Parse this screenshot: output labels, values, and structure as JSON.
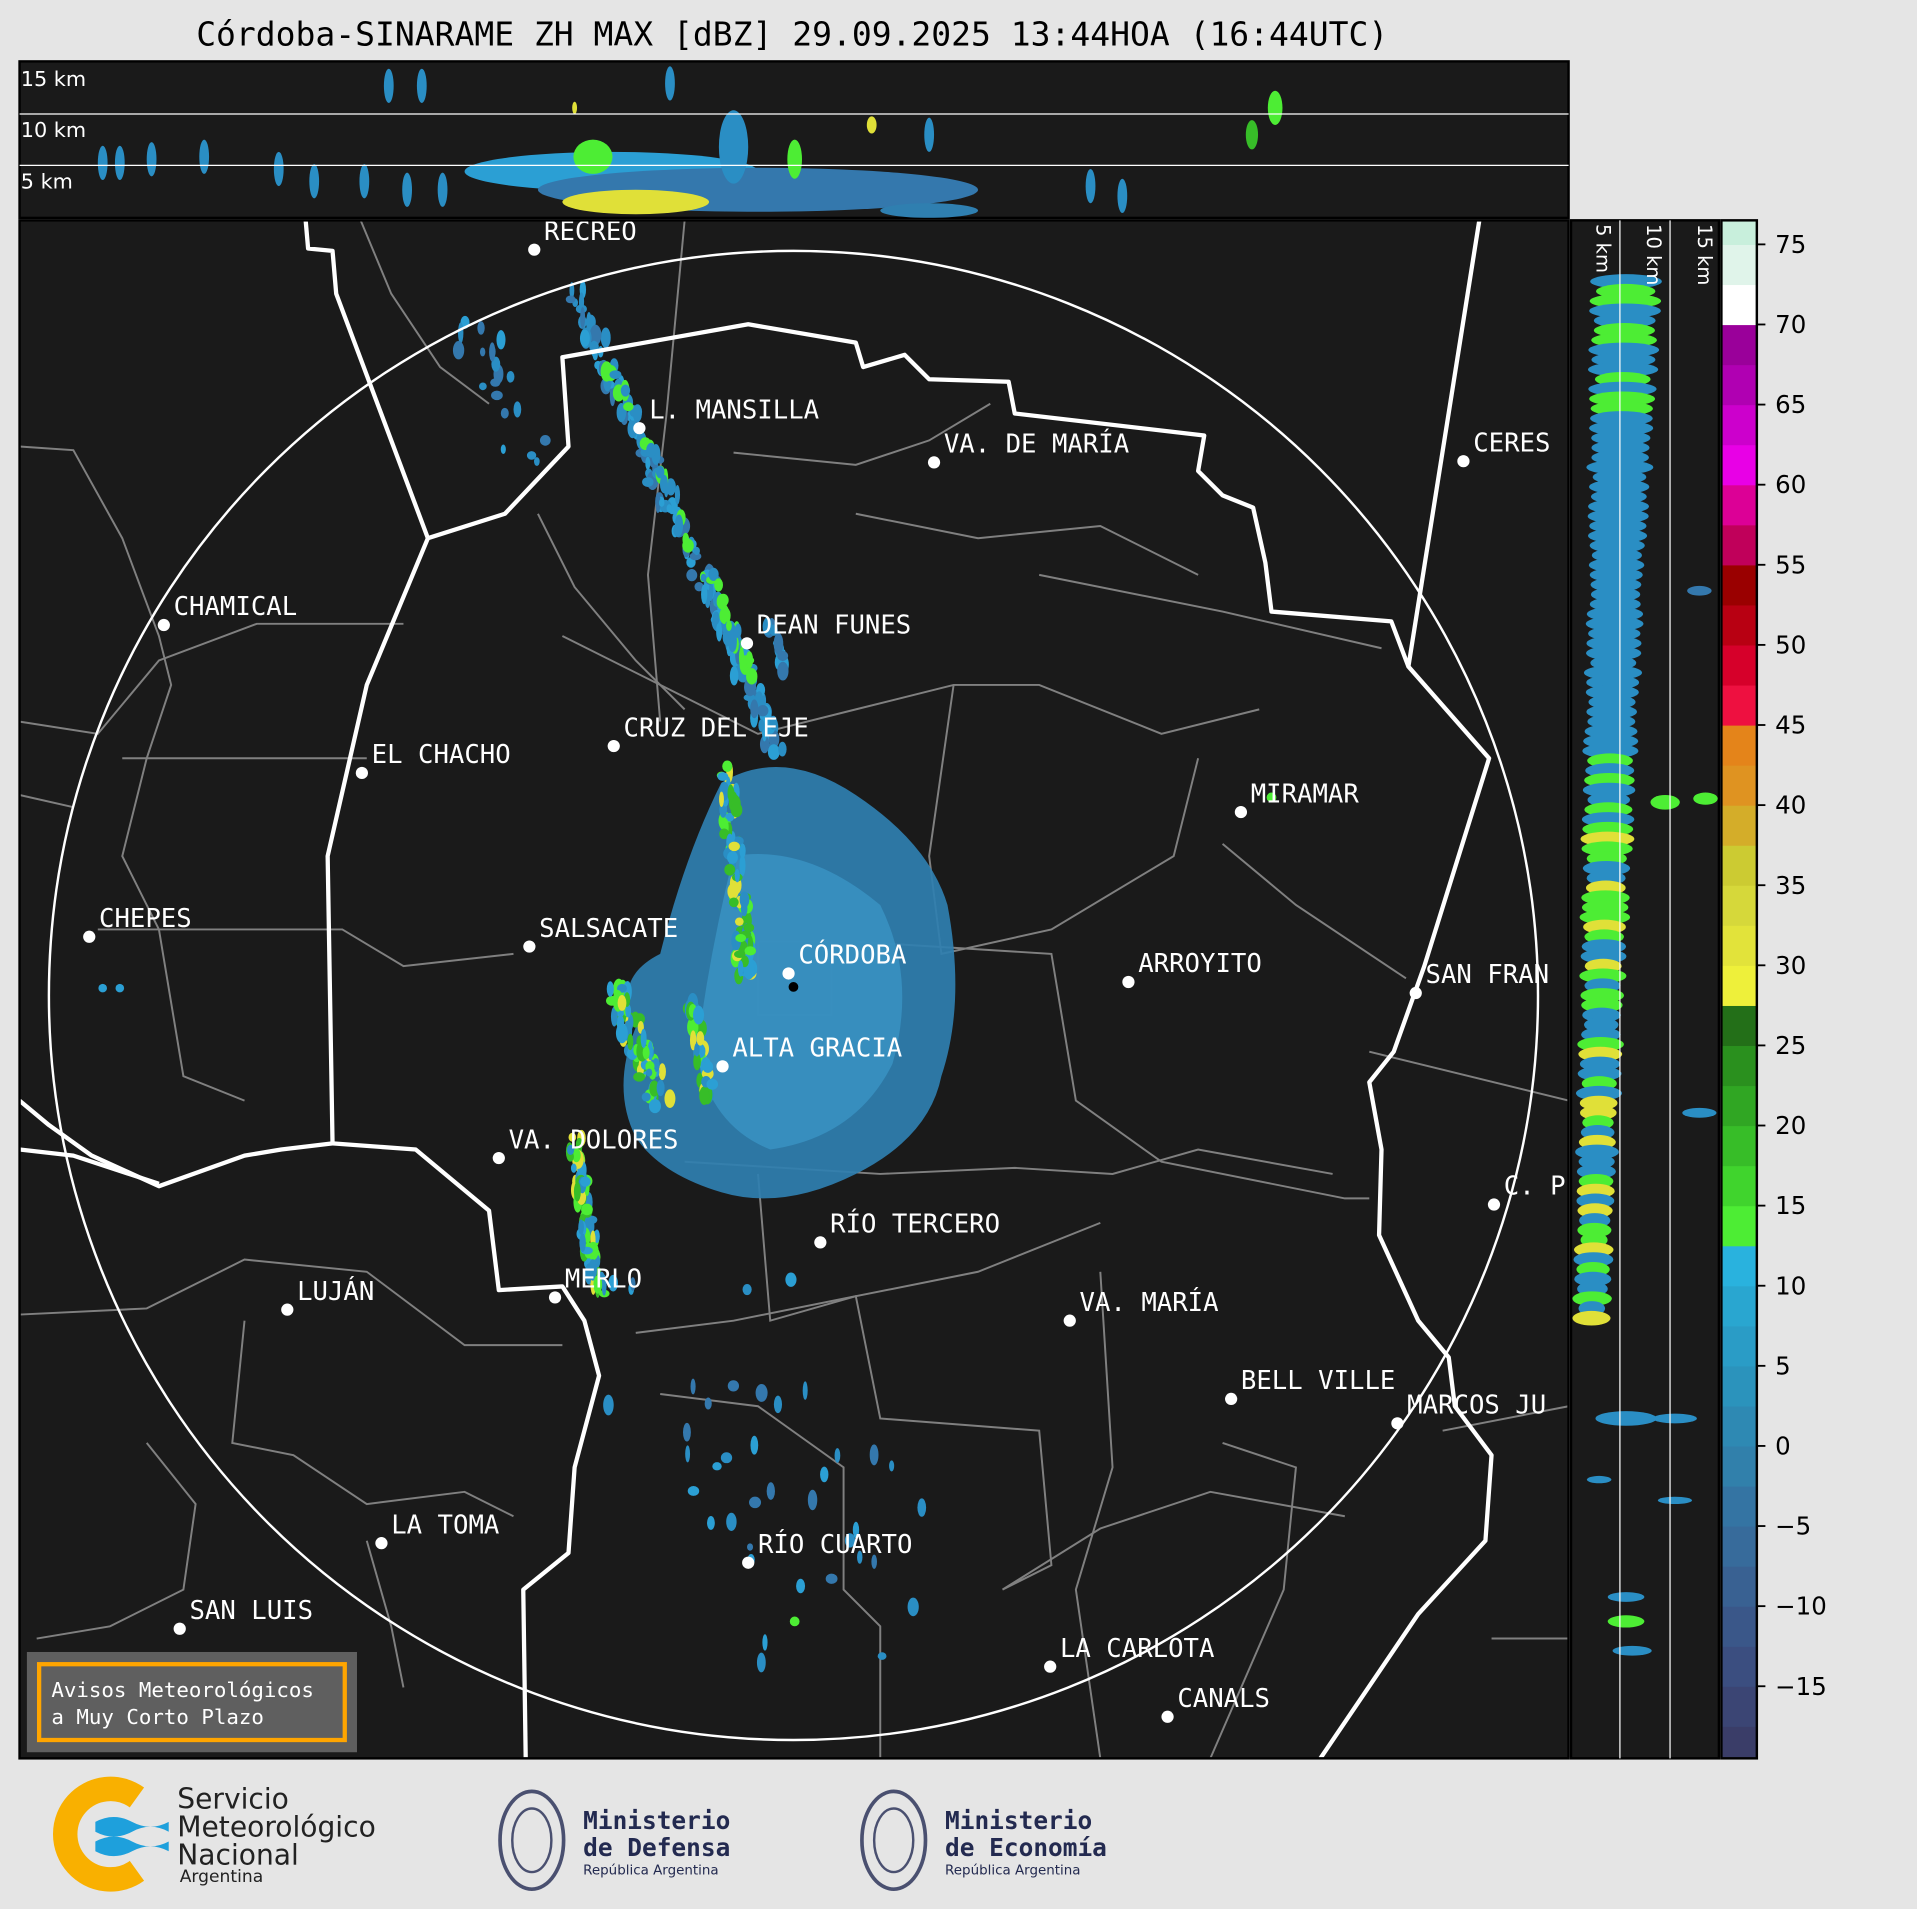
{
  "title": "Córdoba-SINARAME ZH MAX [dBZ] 29.09.2025 13:44HOA (16:44UTC)",
  "top_panel": {
    "height_labels": [
      "15 km",
      "10 km",
      "5 km"
    ]
  },
  "side_panel": {
    "height_labels": [
      "5 km",
      "10 km",
      "15 km"
    ]
  },
  "colorbar": {
    "unit": "dBZ",
    "range": [
      -19.5,
      76.5
    ],
    "ticks": [
      "75",
      "70",
      "65",
      "60",
      "55",
      "50",
      "45",
      "40",
      "35",
      "30",
      "25",
      "20",
      "15",
      "10",
      "5",
      "0",
      "−5",
      "−10",
      "−15"
    ],
    "tick_values": [
      75,
      70,
      65,
      60,
      55,
      50,
      45,
      40,
      35,
      30,
      25,
      20,
      15,
      10,
      5,
      0,
      -5,
      -10,
      -15
    ]
  },
  "map": {
    "background": "#1a1a1a",
    "range_ring_color": "#ffffff",
    "radar_site": "CÓRDOBA",
    "cities": [
      "RECREO",
      "L. MANSILLA",
      "VA. DE MARÍA",
      "CERES",
      "CHAMICAL",
      "DEAN FUNES",
      "CRUZ DEL EJE",
      "EL CHACHO",
      "MIRAMAR",
      "CHEPES",
      "SALSACATE",
      "CÓRDOBA",
      "ARROYITO",
      "SAN FRAN",
      "ALTA GRACIA",
      "VA. DOLORES",
      "C. P",
      "RÍO TERCERO",
      "LUJÁN",
      "MERLO",
      "VA. MARÍA",
      "BELL VILLE",
      "MARCOS JU",
      "LA TOMA",
      "RÍO CUARTO",
      "SAN LUIS",
      "LA CARLOTA",
      "CANALS"
    ]
  },
  "alert_box": {
    "line1": "Avisos Meteorológicos",
    "line2": "a Muy Corto Plazo",
    "border_color": "#ffa500"
  },
  "footer": {
    "smn": {
      "line1": "Servicio",
      "line2": "Meteorológico",
      "line3": "Nacional",
      "line4": "Argentina"
    },
    "defensa": {
      "line1": "Ministerio",
      "line2": "de Defensa",
      "line3": "República Argentina"
    },
    "economia": {
      "line1": "Ministerio",
      "line2": "de Economía",
      "line3": "República Argentina"
    }
  }
}
